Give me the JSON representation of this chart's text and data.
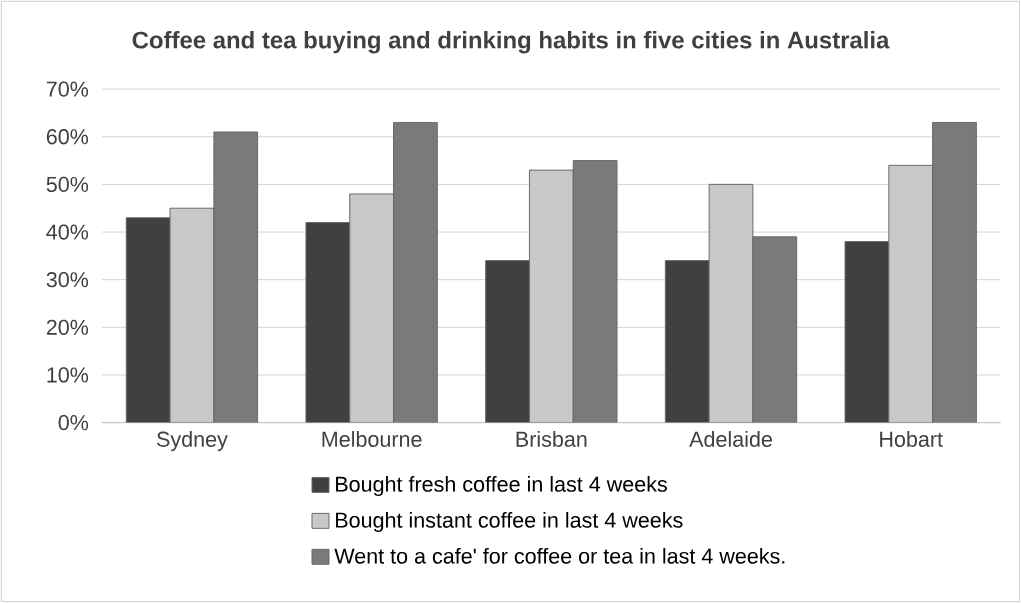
{
  "chart_data": {
    "type": "bar",
    "title": "Coffee and tea buying and drinking habits in five cities in Australia",
    "categories": [
      "Sydney",
      "Melbourne",
      "Brisban",
      "Adelaide",
      "Hobart"
    ],
    "series": [
      {
        "name": "Bought fresh coffee in last 4 weeks",
        "color": "#404040",
        "values": [
          43,
          42,
          34,
          34,
          38
        ]
      },
      {
        "name": "Bought instant coffee in last 4 weeks",
        "color": "#c8c8c8",
        "values": [
          45,
          48,
          53,
          50,
          54
        ]
      },
      {
        "name": "Went to a cafe' for coffee or tea in last 4 weeks.",
        "color": "#7a7a7a",
        "values": [
          61,
          63,
          55,
          39,
          63
        ]
      }
    ],
    "ylim": [
      0,
      70
    ],
    "yticks": [
      {
        "value": 0,
        "label": "0%"
      },
      {
        "value": 10,
        "label": "10%"
      },
      {
        "value": 20,
        "label": "20%"
      },
      {
        "value": 30,
        "label": "30%"
      },
      {
        "value": 40,
        "label": "40%"
      },
      {
        "value": 50,
        "label": "50%"
      },
      {
        "value": 60,
        "label": "60%"
      },
      {
        "value": 70,
        "label": "70%"
      }
    ],
    "grid": "y",
    "legend": "bottom"
  }
}
